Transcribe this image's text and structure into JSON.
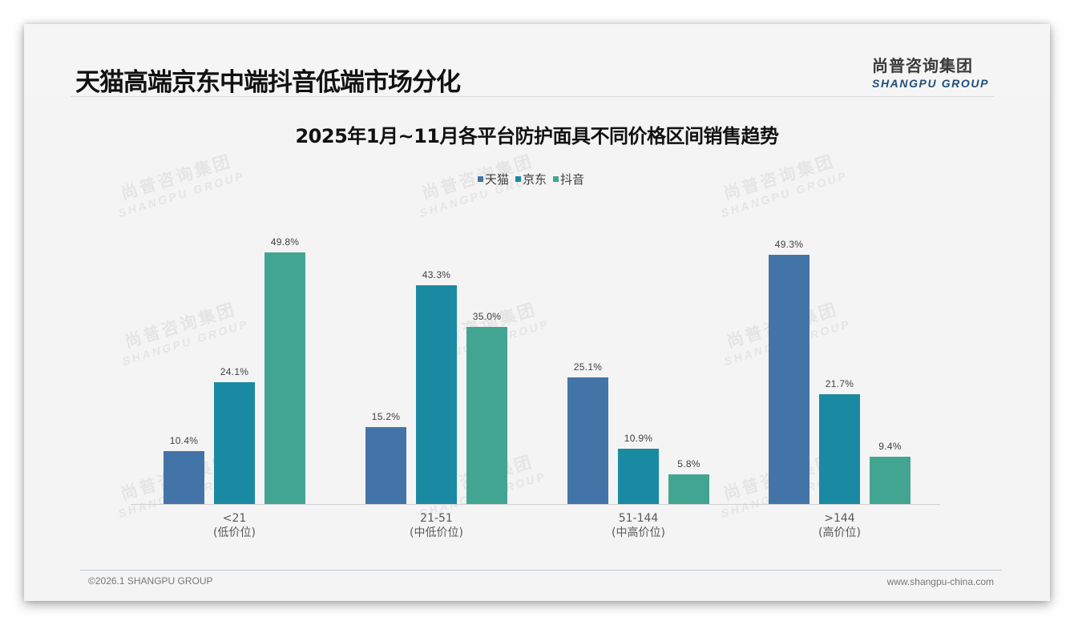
{
  "header": {
    "title": "天猫高端京东中端抖音低端市场分化",
    "logo_cn": "尚普咨询集团",
    "logo_en": "SHANGPU GROUP"
  },
  "watermark": {
    "cn": "尚普咨询集团",
    "en": "SHANGPU GROUP"
  },
  "footer": {
    "copyright": "©2026.1 SHANGPU GROUP",
    "website": "www.shangpu-china.com"
  },
  "colors": {
    "tmall": "#4374a8",
    "jd": "#1a8aa2",
    "douyin": "#42a591",
    "footer_rule": "#b9c7d6"
  },
  "chart_data": {
    "type": "bar",
    "title": "2025年1月~11月各平台防护面具不同价格区间销售趋势",
    "xlabel": "",
    "ylabel": "",
    "ylim": [
      0,
      55
    ],
    "grid": false,
    "legend_position": "top",
    "categories": [
      "<21",
      "21-51",
      "51-144",
      ">144"
    ],
    "category_sublabels": [
      "(低价位)",
      "(中低价位)",
      "(中高价位)",
      "(高价位)"
    ],
    "series": [
      {
        "name": "天猫",
        "color": "#4374a8",
        "values": [
          10.4,
          15.2,
          25.1,
          49.3
        ],
        "labels": [
          "10.4%",
          "15.2%",
          "25.1%",
          "49.3%"
        ]
      },
      {
        "name": "京东",
        "color": "#1a8aa2",
        "values": [
          24.1,
          43.3,
          10.9,
          21.7
        ],
        "labels": [
          "24.1%",
          "43.3%",
          "10.9%",
          "21.7%"
        ]
      },
      {
        "name": "抖音",
        "color": "#42a591",
        "values": [
          49.8,
          35.0,
          5.8,
          9.4
        ],
        "labels": [
          "49.8%",
          "35.0%",
          "5.8%",
          "9.4%"
        ]
      }
    ],
    "unit": "%"
  }
}
